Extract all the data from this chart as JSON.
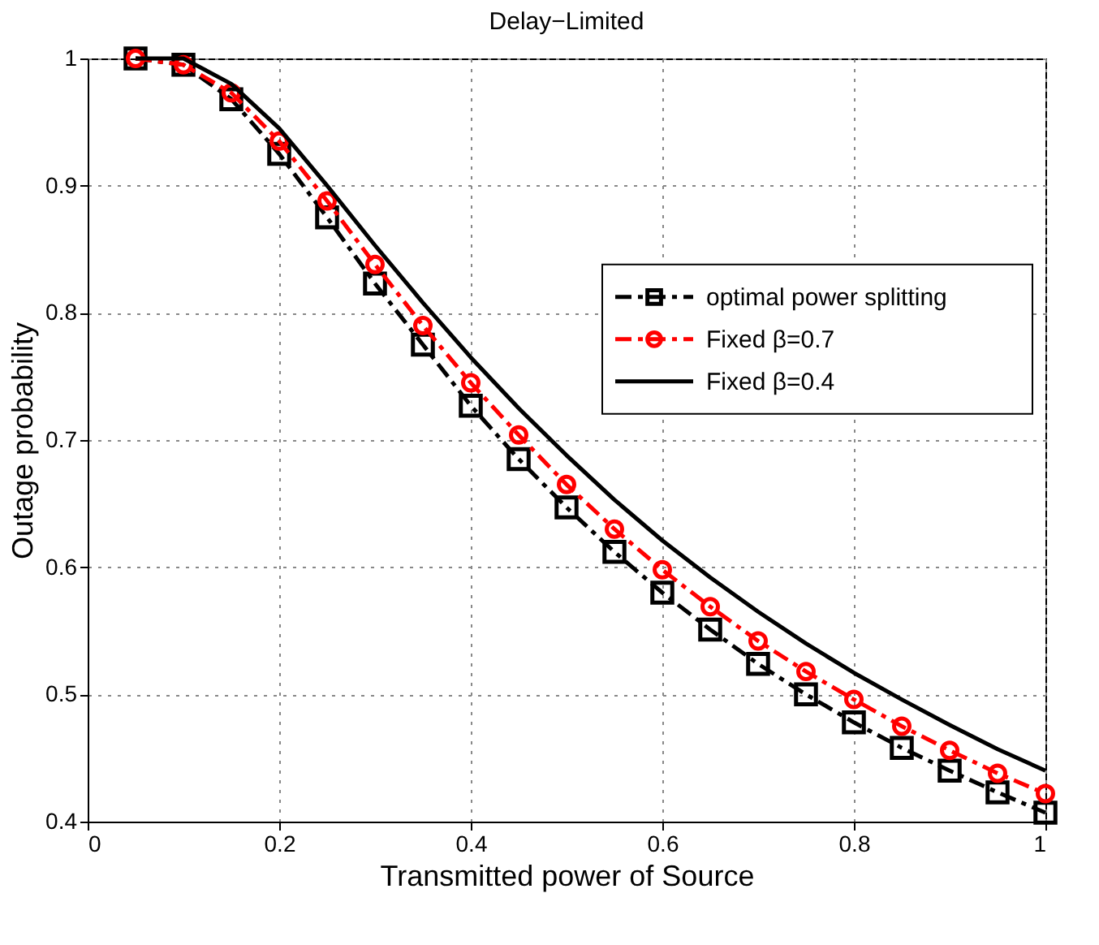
{
  "chart_data": {
    "type": "line",
    "title": "Delay−Limited",
    "xlabel": "Transmitted power of Source",
    "ylabel": "Outage probability",
    "x": [
      0.05,
      0.1,
      0.15,
      0.2,
      0.25,
      0.3,
      0.35,
      0.4,
      0.45,
      0.5,
      0.55,
      0.6,
      0.65,
      0.7,
      0.75,
      0.8,
      0.85,
      0.9,
      0.95,
      1.0
    ],
    "series": [
      {
        "name": "optimal power splitting",
        "color": "#000000",
        "marker": "square",
        "line_style": "dashed",
        "values": [
          1.0,
          0.995,
          0.968,
          0.925,
          0.875,
          0.823,
          0.775,
          0.727,
          0.685,
          0.647,
          0.612,
          0.58,
          0.551,
          0.524,
          0.5,
          0.478,
          0.458,
          0.44,
          0.423,
          0.407
        ]
      },
      {
        "name": "Fixed β=0.7",
        "color": "#ff0000",
        "marker": "circle",
        "line_style": "dashed",
        "values": [
          1.0,
          0.995,
          0.973,
          0.935,
          0.888,
          0.838,
          0.79,
          0.745,
          0.704,
          0.665,
          0.63,
          0.598,
          0.569,
          0.542,
          0.518,
          0.496,
          0.475,
          0.456,
          0.438,
          0.422
        ]
      },
      {
        "name": "Fixed β=0.4",
        "color": "#000000",
        "marker": "none",
        "line_style": "solid",
        "values": [
          1.0,
          1.0,
          0.98,
          0.945,
          0.9,
          0.853,
          0.808,
          0.765,
          0.725,
          0.688,
          0.653,
          0.621,
          0.592,
          0.565,
          0.54,
          0.517,
          0.496,
          0.476,
          0.457,
          0.44
        ]
      }
    ],
    "xlim": [
      0,
      1
    ],
    "xticks": [
      0,
      0.2,
      0.4,
      0.6,
      0.8,
      1
    ],
    "ylim": [
      0.4,
      1
    ],
    "yticks": [
      0.4,
      0.5,
      0.6,
      0.7,
      0.8,
      0.9,
      1
    ],
    "grid": true,
    "legend": "right"
  }
}
